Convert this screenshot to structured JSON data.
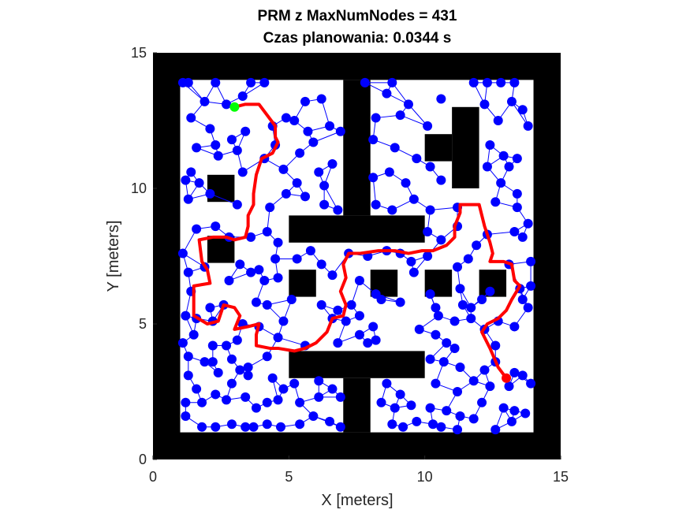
{
  "chart_data": {
    "type": "scatter",
    "title": [
      "PRM z MaxNumNodes = 431",
      "Czas planowania: 0.0344 s"
    ],
    "xlabel": "X [meters]",
    "ylabel": "Y [meters]",
    "xlim": [
      0,
      15
    ],
    "ylim": [
      0,
      15
    ],
    "xticks": [
      0,
      5,
      10,
      15
    ],
    "yticks": [
      0,
      5,
      10,
      15
    ],
    "grid": false,
    "colors": {
      "obstacle": "#000000",
      "free": "#ffffff",
      "nodes": "#0000ff",
      "edges": "#0000ff",
      "path": "#ff0000",
      "start": "#00ff00",
      "goal": "#ff0000"
    },
    "obstacles": [
      {
        "x0": 0,
        "y0": 0,
        "x1": 15,
        "y1": 1
      },
      {
        "x0": 0,
        "y0": 14,
        "x1": 15,
        "y1": 15
      },
      {
        "x0": 0,
        "y0": 0,
        "x1": 1,
        "y1": 15
      },
      {
        "x0": 14,
        "y0": 0,
        "x1": 15,
        "y1": 15
      },
      {
        "x0": 7,
        "y0": 9,
        "x1": 8,
        "y1": 14
      },
      {
        "x0": 5,
        "y0": 8,
        "x1": 10,
        "y1": 9
      },
      {
        "x0": 5,
        "y0": 3,
        "x1": 10,
        "y1": 4
      },
      {
        "x0": 7,
        "y0": 1,
        "x1": 8,
        "y1": 3
      },
      {
        "x0": 2,
        "y0": 9.5,
        "x1": 3,
        "y1": 10.5
      },
      {
        "x0": 2,
        "y0": 7.25,
        "x1": 3,
        "y1": 8.25
      },
      {
        "x0": 5,
        "y0": 6,
        "x1": 6,
        "y1": 7
      },
      {
        "x0": 8,
        "y0": 6,
        "x1": 9,
        "y1": 7
      },
      {
        "x0": 10,
        "y0": 6,
        "x1": 11,
        "y1": 7
      },
      {
        "x0": 12,
        "y0": 6,
        "x1": 13,
        "y1": 7
      },
      {
        "x0": 11,
        "y0": 10,
        "x1": 12,
        "y1": 13
      },
      {
        "x0": 10,
        "y0": 11,
        "x1": 11,
        "y1": 12
      }
    ],
    "nodes": [
      [
        1.1,
        13.9
      ],
      [
        1.3,
        13.9
      ],
      [
        2.3,
        13.9
      ],
      [
        3.6,
        13.9
      ],
      [
        4.1,
        13.9
      ],
      [
        7.8,
        13.9
      ],
      [
        8.8,
        13.9
      ],
      [
        11.8,
        13.9
      ],
      [
        12.3,
        13.9
      ],
      [
        12.8,
        13.9
      ],
      [
        13.3,
        13.9
      ],
      [
        1.9,
        13.2
      ],
      [
        2.7,
        13.1
      ],
      [
        3.3,
        13.4
      ],
      [
        4.9,
        12.6
      ],
      [
        5.6,
        13.2
      ],
      [
        6.2,
        13.3
      ],
      [
        6.9,
        12.1
      ],
      [
        8.6,
        13.5
      ],
      [
        9.4,
        13.1
      ],
      [
        10.6,
        13.3
      ],
      [
        12.2,
        13.1
      ],
      [
        13.2,
        13.2
      ],
      [
        1.4,
        12.6
      ],
      [
        2.1,
        12.2
      ],
      [
        2.3,
        11.6
      ],
      [
        2.9,
        11.8
      ],
      [
        3.4,
        12.1
      ],
      [
        4.4,
        12.3
      ],
      [
        5.2,
        12.5
      ],
      [
        5.7,
        12.1
      ],
      [
        6.5,
        12.3
      ],
      [
        8.2,
        12.6
      ],
      [
        9.1,
        12.7
      ],
      [
        10.1,
        12.3
      ],
      [
        12.7,
        12.5
      ],
      [
        13.6,
        12.9
      ],
      [
        13.8,
        12.3
      ],
      [
        1.6,
        11.5
      ],
      [
        2.4,
        11.2
      ],
      [
        3.1,
        11.4
      ],
      [
        4.1,
        11.1
      ],
      [
        4.5,
        11.6
      ],
      [
        5.4,
        11.3
      ],
      [
        5.9,
        11.7
      ],
      [
        8.1,
        11.8
      ],
      [
        8.9,
        11.5
      ],
      [
        9.7,
        11.1
      ],
      [
        12.4,
        11.6
      ],
      [
        12.9,
        11.2
      ],
      [
        13.4,
        11.1
      ],
      [
        13.1,
        10.8
      ],
      [
        1.2,
        10.3
      ],
      [
        1.4,
        10.6
      ],
      [
        1.7,
        10.2
      ],
      [
        3.3,
        10.6
      ],
      [
        4.8,
        10.7
      ],
      [
        5.3,
        10.2
      ],
      [
        6.1,
        10.6
      ],
      [
        6.6,
        10.9
      ],
      [
        6.3,
        10.1
      ],
      [
        8.1,
        10.4
      ],
      [
        8.7,
        10.6
      ],
      [
        9.3,
        10.2
      ],
      [
        10.2,
        10.8
      ],
      [
        10.6,
        10.3
      ],
      [
        12.3,
        10.8
      ],
      [
        12.8,
        10.2
      ],
      [
        13.4,
        9.8
      ],
      [
        1.3,
        9.6
      ],
      [
        2.1,
        9.8
      ],
      [
        3.1,
        9.4
      ],
      [
        4.3,
        9.3
      ],
      [
        4.9,
        9.8
      ],
      [
        5.6,
        9.7
      ],
      [
        6.3,
        9.4
      ],
      [
        6.8,
        9.2
      ],
      [
        8.2,
        9.4
      ],
      [
        8.8,
        9.2
      ],
      [
        9.6,
        9.6
      ],
      [
        10.2,
        9.2
      ],
      [
        11.2,
        9.3
      ],
      [
        12.6,
        9.5
      ],
      [
        13.4,
        9.3
      ],
      [
        13.8,
        8.7
      ],
      [
        1.6,
        8.5
      ],
      [
        2.3,
        8.6
      ],
      [
        2.8,
        8.2
      ],
      [
        3.6,
        8.2
      ],
      [
        4.2,
        8.4
      ],
      [
        4.6,
        8.0
      ],
      [
        10.1,
        8.4
      ],
      [
        10.6,
        8.1
      ],
      [
        11.2,
        8.6
      ],
      [
        11.9,
        7.9
      ],
      [
        12.3,
        8.3
      ],
      [
        13.3,
        8.4
      ],
      [
        13.6,
        8.2
      ],
      [
        1.1,
        7.6
      ],
      [
        1.9,
        7.1
      ],
      [
        3.2,
        7.2
      ],
      [
        3.9,
        7.0
      ],
      [
        4.5,
        7.4
      ],
      [
        5.3,
        7.4
      ],
      [
        5.8,
        7.7
      ],
      [
        6.2,
        7.2
      ],
      [
        7.2,
        7.6
      ],
      [
        7.9,
        7.5
      ],
      [
        8.6,
        7.7
      ],
      [
        9.1,
        7.6
      ],
      [
        9.5,
        7.3
      ],
      [
        10.1,
        7.5
      ],
      [
        11.2,
        7.1
      ],
      [
        11.6,
        7.4
      ],
      [
        13.1,
        7.2
      ],
      [
        13.9,
        7.3
      ],
      [
        1.3,
        6.9
      ],
      [
        2.8,
        6.6
      ],
      [
        3.6,
        6.9
      ],
      [
        4.1,
        6.6
      ],
      [
        4.6,
        6.7
      ],
      [
        6.6,
        6.8
      ],
      [
        7.6,
        6.6
      ],
      [
        8.2,
        6.1
      ],
      [
        9.6,
        6.9
      ],
      [
        10.2,
        6.1
      ],
      [
        11.3,
        6.3
      ],
      [
        12.4,
        6.2
      ],
      [
        13.5,
        6.3
      ],
      [
        13.9,
        6.4
      ],
      [
        1.4,
        6.2
      ],
      [
        2.1,
        5.6
      ],
      [
        2.6,
        5.7
      ],
      [
        3.8,
        5.8
      ],
      [
        4.2,
        5.7
      ],
      [
        5.1,
        5.9
      ],
      [
        6.2,
        5.7
      ],
      [
        6.8,
        5.5
      ],
      [
        7.3,
        5.7
      ],
      [
        8.4,
        5.9
      ],
      [
        9.1,
        5.8
      ],
      [
        10.4,
        5.6
      ],
      [
        11.4,
        5.7
      ],
      [
        11.7,
        5.6
      ],
      [
        12.1,
        5.9
      ],
      [
        13.6,
        5.9
      ],
      [
        13.8,
        5.6
      ],
      [
        1.2,
        5.3
      ],
      [
        1.6,
        5.2
      ],
      [
        2.2,
        5.1
      ],
      [
        3.3,
        5.0
      ],
      [
        3.9,
        4.9
      ],
      [
        4.8,
        5.1
      ],
      [
        6.6,
        5.2
      ],
      [
        7.1,
        5.1
      ],
      [
        7.6,
        5.3
      ],
      [
        8.1,
        4.9
      ],
      [
        9.8,
        4.8
      ],
      [
        10.5,
        5.3
      ],
      [
        11.1,
        5.1
      ],
      [
        11.7,
        5.2
      ],
      [
        12.2,
        4.8
      ],
      [
        12.7,
        5.1
      ],
      [
        13.3,
        4.9
      ],
      [
        1.1,
        4.3
      ],
      [
        1.5,
        4.6
      ],
      [
        2.2,
        4.2
      ],
      [
        2.7,
        4.2
      ],
      [
        3.1,
        4.4
      ],
      [
        4.6,
        4.5
      ],
      [
        5.6,
        4.2
      ],
      [
        6.8,
        4.3
      ],
      [
        7.6,
        4.6
      ],
      [
        7.9,
        4.3
      ],
      [
        8.2,
        4.4
      ],
      [
        10.4,
        4.6
      ],
      [
        10.8,
        4.3
      ],
      [
        11.1,
        4.1
      ],
      [
        12.6,
        4.2
      ],
      [
        1.3,
        3.8
      ],
      [
        1.9,
        3.6
      ],
      [
        2.2,
        3.6
      ],
      [
        2.9,
        3.7
      ],
      [
        3.5,
        3.4
      ],
      [
        4.2,
        3.8
      ],
      [
        10.2,
        3.7
      ],
      [
        10.7,
        3.6
      ],
      [
        11.3,
        3.4
      ],
      [
        12.2,
        3.3
      ],
      [
        12.6,
        3.6
      ],
      [
        13.3,
        3.2
      ],
      [
        13.6,
        3.1
      ],
      [
        1.3,
        3.1
      ],
      [
        1.6,
        2.6
      ],
      [
        2.4,
        3.2
      ],
      [
        2.9,
        2.8
      ],
      [
        3.2,
        3.3
      ],
      [
        3.5,
        3.1
      ],
      [
        4.4,
        3.0
      ],
      [
        4.8,
        2.6
      ],
      [
        5.2,
        2.8
      ],
      [
        6.1,
        2.9
      ],
      [
        6.6,
        2.6
      ],
      [
        8.6,
        2.8
      ],
      [
        9.1,
        2.4
      ],
      [
        10.4,
        2.8
      ],
      [
        11.2,
        2.5
      ],
      [
        11.8,
        2.9
      ],
      [
        12.4,
        2.7
      ],
      [
        13.1,
        2.7
      ],
      [
        13.9,
        2.8
      ],
      [
        1.2,
        2.1
      ],
      [
        1.8,
        2.1
      ],
      [
        2.3,
        2.4
      ],
      [
        2.7,
        2.2
      ],
      [
        3.4,
        2.3
      ],
      [
        3.8,
        1.9
      ],
      [
        4.2,
        2.1
      ],
      [
        4.6,
        2.2
      ],
      [
        5.4,
        2.1
      ],
      [
        6.1,
        2.3
      ],
      [
        6.9,
        2.3
      ],
      [
        8.4,
        2.1
      ],
      [
        8.9,
        1.9
      ],
      [
        9.5,
        2.0
      ],
      [
        10.2,
        1.9
      ],
      [
        10.8,
        1.8
      ],
      [
        11.3,
        1.6
      ],
      [
        12.1,
        2.1
      ],
      [
        12.9,
        1.9
      ],
      [
        13.3,
        1.8
      ],
      [
        13.7,
        1.7
      ],
      [
        1.2,
        1.6
      ],
      [
        1.8,
        1.2
      ],
      [
        2.3,
        1.2
      ],
      [
        2.9,
        1.3
      ],
      [
        3.4,
        1.2
      ],
      [
        3.7,
        1.2
      ],
      [
        4.2,
        1.3
      ],
      [
        4.7,
        1.2
      ],
      [
        5.4,
        1.3
      ],
      [
        5.9,
        1.6
      ],
      [
        6.5,
        1.4
      ],
      [
        6.9,
        1.2
      ],
      [
        8.8,
        1.3
      ],
      [
        9.2,
        1.2
      ],
      [
        9.7,
        1.4
      ],
      [
        10.3,
        1.3
      ],
      [
        10.6,
        1.2
      ],
      [
        11.2,
        1.1
      ],
      [
        11.8,
        1.5
      ],
      [
        12.6,
        1.1
      ],
      [
        13.2,
        1.4
      ]
    ],
    "path": [
      [
        3.0,
        13.0
      ],
      [
        3.4,
        13.1
      ],
      [
        3.9,
        13.1
      ],
      [
        4.5,
        12.3
      ],
      [
        4.5,
        11.9
      ],
      [
        4.6,
        11.7
      ],
      [
        4.4,
        11.3
      ],
      [
        4.0,
        11.1
      ],
      [
        3.8,
        10.5
      ],
      [
        3.7,
        9.8
      ],
      [
        3.7,
        9.4
      ],
      [
        3.5,
        9.0
      ],
      [
        3.5,
        8.6
      ],
      [
        3.4,
        8.2
      ],
      [
        3.0,
        8.1
      ],
      [
        2.7,
        8.2
      ],
      [
        2.2,
        8.2
      ],
      [
        1.7,
        8.1
      ],
      [
        1.8,
        7.3
      ],
      [
        2.0,
        7.0
      ],
      [
        2.1,
        6.5
      ],
      [
        1.5,
        6.4
      ],
      [
        1.5,
        5.8
      ],
      [
        1.5,
        5.3
      ],
      [
        2.0,
        5.0
      ],
      [
        2.4,
        5.1
      ],
      [
        2.6,
        5.7
      ],
      [
        3.0,
        5.6
      ],
      [
        3.2,
        5.3
      ],
      [
        3.0,
        4.8
      ],
      [
        3.5,
        4.9
      ],
      [
        3.9,
        5.0
      ],
      [
        3.8,
        4.6
      ],
      [
        3.8,
        4.2
      ],
      [
        4.3,
        4.1
      ],
      [
        4.6,
        4.1
      ],
      [
        5.2,
        4.0
      ],
      [
        5.6,
        4.1
      ],
      [
        6.0,
        4.3
      ],
      [
        6.4,
        4.7
      ],
      [
        6.6,
        5.2
      ],
      [
        7.0,
        5.3
      ],
      [
        7.1,
        5.7
      ],
      [
        6.9,
        6.2
      ],
      [
        7.1,
        6.7
      ],
      [
        7.0,
        7.2
      ],
      [
        7.2,
        7.6
      ],
      [
        7.6,
        7.6
      ],
      [
        8.3,
        7.7
      ],
      [
        8.9,
        7.7
      ],
      [
        9.4,
        7.6
      ],
      [
        9.9,
        7.7
      ],
      [
        10.3,
        7.7
      ],
      [
        10.8,
        7.9
      ],
      [
        11.1,
        8.2
      ],
      [
        11.1,
        8.6
      ],
      [
        11.3,
        9.1
      ],
      [
        11.3,
        9.4
      ],
      [
        12.0,
        9.4
      ],
      [
        12.2,
        8.6
      ],
      [
        12.4,
        8.0
      ],
      [
        12.5,
        7.6
      ],
      [
        12.4,
        7.3
      ],
      [
        12.9,
        7.3
      ],
      [
        13.2,
        7.2
      ],
      [
        13.3,
        6.6
      ],
      [
        13.5,
        6.4
      ],
      [
        13.2,
        5.9
      ],
      [
        13.0,
        5.5
      ],
      [
        12.7,
        5.2
      ],
      [
        12.3,
        5.0
      ],
      [
        12.1,
        4.7
      ],
      [
        12.4,
        4.1
      ],
      [
        12.7,
        3.4
      ],
      [
        13.0,
        3.0
      ]
    ],
    "start": [
      3.0,
      13.0
    ],
    "goal": [
      13.0,
      3.0
    ]
  }
}
